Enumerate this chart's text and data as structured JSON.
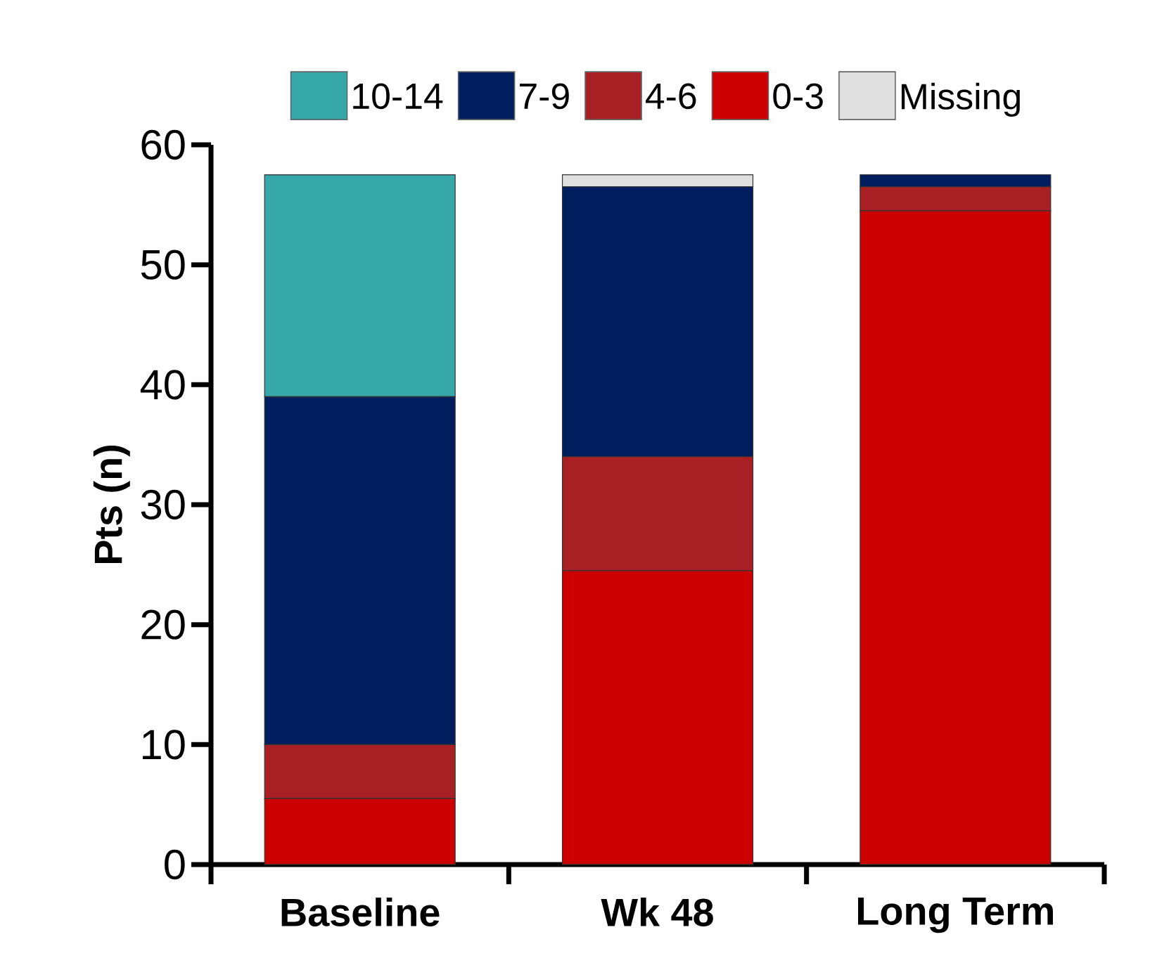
{
  "chart_data": {
    "type": "bar",
    "stacked": true,
    "ylabel": "Pts (n)",
    "categories": [
      "Baseline",
      "Wk 48",
      "Long Term"
    ],
    "series": [
      {
        "name": "0-3",
        "color": "#cc0000",
        "values": [
          5.5,
          24.5,
          54.5
        ]
      },
      {
        "name": "4-6",
        "color": "#a82024",
        "values": [
          4.5,
          9.5,
          2
        ]
      },
      {
        "name": "7-9",
        "color": "#001e5e",
        "values": [
          29,
          22.5,
          1
        ]
      },
      {
        "name": "10-14",
        "color": "#36a8a9",
        "values": [
          18.5,
          null,
          null
        ]
      },
      {
        "name": "Missing",
        "color": "#e0e0e0",
        "values": [
          null,
          1,
          null
        ]
      }
    ],
    "ylim": [
      0,
      60
    ],
    "yticks": [
      0,
      10,
      20,
      30,
      40,
      50,
      60
    ],
    "legend": "top",
    "grid": false
  }
}
